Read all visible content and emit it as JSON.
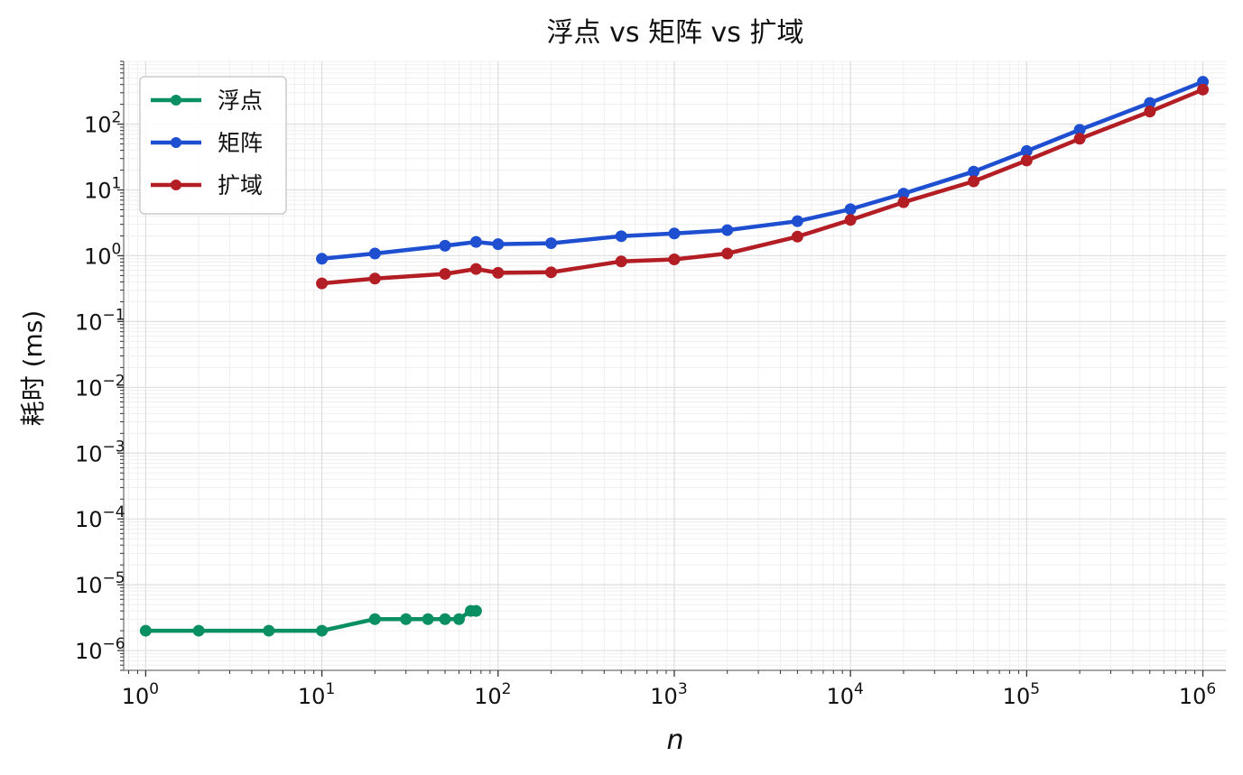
{
  "chart_data": {
    "type": "line",
    "title": "浮点 vs 矩阵 vs 扩域",
    "xlabel": "n",
    "ylabel": "耗时 (ms)",
    "xscale": "log",
    "yscale": "log",
    "xlim": [
      0.75,
      1350000
    ],
    "ylim": [
      5e-07,
      900
    ],
    "grid": true,
    "legend_position": "top-left",
    "x_ticks": [
      {
        "base": "10",
        "exp": "0"
      },
      {
        "base": "10",
        "exp": "1"
      },
      {
        "base": "10",
        "exp": "2"
      },
      {
        "base": "10",
        "exp": "3"
      },
      {
        "base": "10",
        "exp": "4"
      },
      {
        "base": "10",
        "exp": "5"
      },
      {
        "base": "10",
        "exp": "6"
      }
    ],
    "y_ticks": [
      {
        "base": "10",
        "exp": "−6"
      },
      {
        "base": "10",
        "exp": "−5"
      },
      {
        "base": "10",
        "exp": "−4"
      },
      {
        "base": "10",
        "exp": "−3"
      },
      {
        "base": "10",
        "exp": "−2"
      },
      {
        "base": "10",
        "exp": "−1"
      },
      {
        "base": "10",
        "exp": "0"
      },
      {
        "base": "10",
        "exp": "1"
      },
      {
        "base": "10",
        "exp": "2"
      }
    ],
    "series": [
      {
        "name": "浮点",
        "color": "#0a8f63",
        "x": [
          1,
          2,
          5,
          10,
          20,
          30,
          40,
          50,
          60,
          70,
          75
        ],
        "values": [
          2e-06,
          2e-06,
          2e-06,
          2e-06,
          3e-06,
          3e-06,
          3e-06,
          3e-06,
          3e-06,
          4e-06,
          4e-06
        ]
      },
      {
        "name": "矩阵",
        "color": "#1f4fd1",
        "x": [
          10,
          20,
          50,
          75,
          100,
          200,
          500,
          1000,
          2000,
          5000,
          10000,
          20000,
          50000,
          100000,
          200000,
          500000,
          1000000
        ],
        "values": [
          0.9,
          1.08,
          1.42,
          1.62,
          1.5,
          1.55,
          1.98,
          2.18,
          2.45,
          3.35,
          5.1,
          8.8,
          19,
          39,
          82,
          210,
          440
        ]
      },
      {
        "name": "扩域",
        "color": "#b31e24",
        "x": [
          10,
          20,
          50,
          75,
          100,
          200,
          500,
          1000,
          2000,
          5000,
          10000,
          20000,
          50000,
          100000,
          200000,
          500000,
          1000000
        ],
        "values": [
          0.38,
          0.45,
          0.53,
          0.63,
          0.55,
          0.56,
          0.82,
          0.88,
          1.08,
          1.95,
          3.5,
          6.5,
          13.5,
          28,
          60,
          155,
          335
        ]
      }
    ]
  }
}
